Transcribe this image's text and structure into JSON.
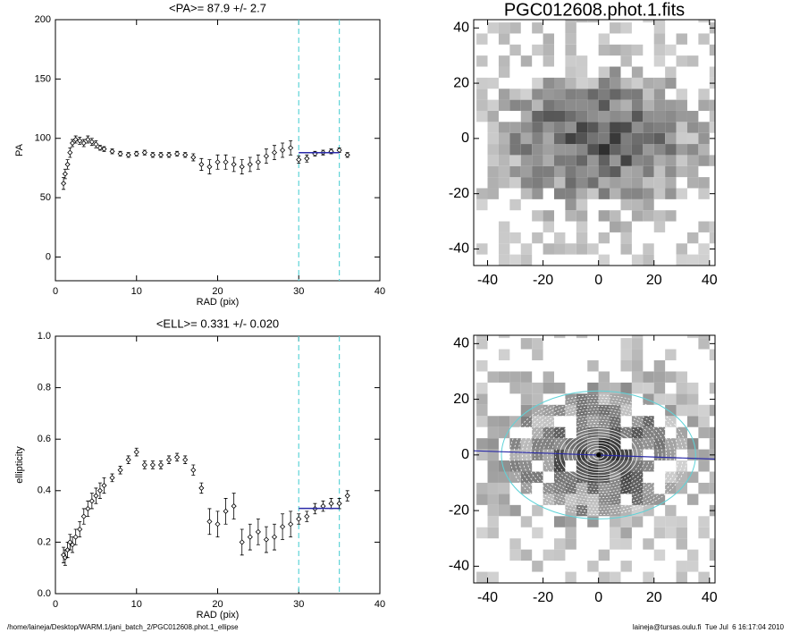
{
  "chart_data": [
    {
      "type": "scatter",
      "title": "<PA>=  87.9 +/-   2.7",
      "xlabel": "RAD (pix)",
      "ylabel": "PA",
      "x": [
        1.0,
        1.2,
        1.5,
        1.8,
        2.1,
        2.5,
        3,
        3.5,
        4,
        4.5,
        5,
        5.5,
        6,
        7,
        8,
        9,
        10,
        11,
        12,
        13,
        14,
        15,
        16,
        17,
        18,
        19,
        20,
        21,
        22,
        23,
        24,
        25,
        26,
        27,
        28,
        29,
        30,
        31,
        32,
        33,
        34,
        35,
        36
      ],
      "values": [
        62,
        70,
        78,
        88,
        96,
        99,
        98,
        96,
        99,
        97,
        95,
        92,
        91,
        89,
        87,
        86,
        87,
        88,
        86,
        86,
        86,
        87,
        86,
        84,
        78,
        76,
        80,
        80,
        78,
        76,
        78,
        80,
        85,
        88,
        90,
        92,
        82,
        83,
        87,
        88,
        89,
        90,
        86
      ],
      "errors": [
        5,
        4,
        4,
        4,
        3,
        3,
        3,
        3,
        3,
        3,
        3,
        2,
        2,
        2,
        2,
        2,
        2,
        2,
        2,
        2,
        2,
        2,
        2,
        3,
        5,
        6,
        6,
        6,
        6,
        6,
        6,
        6,
        6,
        6,
        6,
        6,
        3,
        3,
        2,
        2,
        2,
        2,
        2
      ],
      "color": "#000000",
      "vlines": [
        30,
        35
      ],
      "vline_color": "#5fd3d8",
      "fit": {
        "x": [
          30,
          35
        ],
        "y": [
          87.9,
          87.9
        ],
        "color": "#2a2aa8"
      },
      "xlim": [
        0,
        40
      ],
      "xticks": [
        0,
        10,
        20,
        30,
        40
      ],
      "ylim": [
        -20,
        200
      ],
      "yticks": [
        0,
        50,
        100,
        150,
        200
      ]
    },
    {
      "type": "scatter",
      "title": "<ELL>= 0.331 +/-  0.020",
      "xlabel": "RAD (pix)",
      "ylabel": "ellipticity",
      "x": [
        1.0,
        1.2,
        1.5,
        1.8,
        2.1,
        2.5,
        3,
        3.5,
        4,
        4.5,
        5,
        5.5,
        6,
        7,
        8,
        9,
        10,
        11,
        12,
        13,
        14,
        15,
        16,
        17,
        18,
        19,
        20,
        21,
        22,
        23,
        24,
        25,
        26,
        27,
        28,
        29,
        30,
        31,
        32,
        33,
        34,
        35,
        36
      ],
      "values": [
        0.15,
        0.14,
        0.17,
        0.2,
        0.19,
        0.22,
        0.25,
        0.3,
        0.33,
        0.36,
        0.38,
        0.4,
        0.42,
        0.45,
        0.48,
        0.52,
        0.55,
        0.5,
        0.5,
        0.5,
        0.52,
        0.53,
        0.52,
        0.48,
        0.41,
        0.28,
        0.27,
        0.32,
        0.34,
        0.2,
        0.22,
        0.24,
        0.21,
        0.22,
        0.26,
        0.27,
        0.29,
        0.3,
        0.33,
        0.34,
        0.35,
        0.35,
        0.38
      ],
      "errors": [
        0.03,
        0.03,
        0.03,
        0.03,
        0.03,
        0.03,
        0.03,
        0.03,
        0.03,
        0.03,
        0.03,
        0.03,
        0.03,
        0.015,
        0.015,
        0.015,
        0.015,
        0.015,
        0.015,
        0.015,
        0.015,
        0.015,
        0.015,
        0.02,
        0.02,
        0.05,
        0.05,
        0.05,
        0.05,
        0.05,
        0.05,
        0.05,
        0.05,
        0.05,
        0.05,
        0.05,
        0.02,
        0.02,
        0.02,
        0.02,
        0.02,
        0.02,
        0.02
      ],
      "color": "#000000",
      "vlines": [
        30,
        35
      ],
      "vline_color": "#5fd3d8",
      "fit": {
        "x": [
          30,
          35
        ],
        "y": [
          0.331,
          0.331
        ],
        "color": "#2a2aa8"
      },
      "xlim": [
        0,
        40
      ],
      "xticks": [
        0,
        10,
        20,
        30,
        40
      ],
      "ylim": [
        0,
        1
      ],
      "yticks": [
        {
          "value": 0,
          "label": "0.0"
        },
        0.2,
        0.4,
        0.6,
        0.8,
        {
          "value": 1,
          "label": "1.0"
        }
      ]
    },
    {
      "type": "image",
      "title": "PGC012608.phot.1.fits",
      "xlim": [
        -45,
        42
      ],
      "xticks": [
        -40,
        -20,
        0,
        20,
        40
      ],
      "ylim": [
        -46,
        43
      ],
      "yticks": [
        -40,
        -20,
        0,
        20,
        40
      ]
    },
    {
      "type": "image",
      "overlay": true,
      "xlim": [
        -45,
        42
      ],
      "xticks": [
        -40,
        -20,
        0,
        20,
        40
      ],
      "ylim": [
        -46,
        43
      ],
      "yticks": [
        -40,
        -20,
        0,
        20,
        40
      ]
    }
  ],
  "footer": {
    "left": "/home/laineja/Desktop/WARM.1/jani_batch_2/PGC012608.phot.1_ellipse",
    "right": "laineja@tursas.oulu.fi  Tue Jul  6 16:17:04 2010"
  }
}
